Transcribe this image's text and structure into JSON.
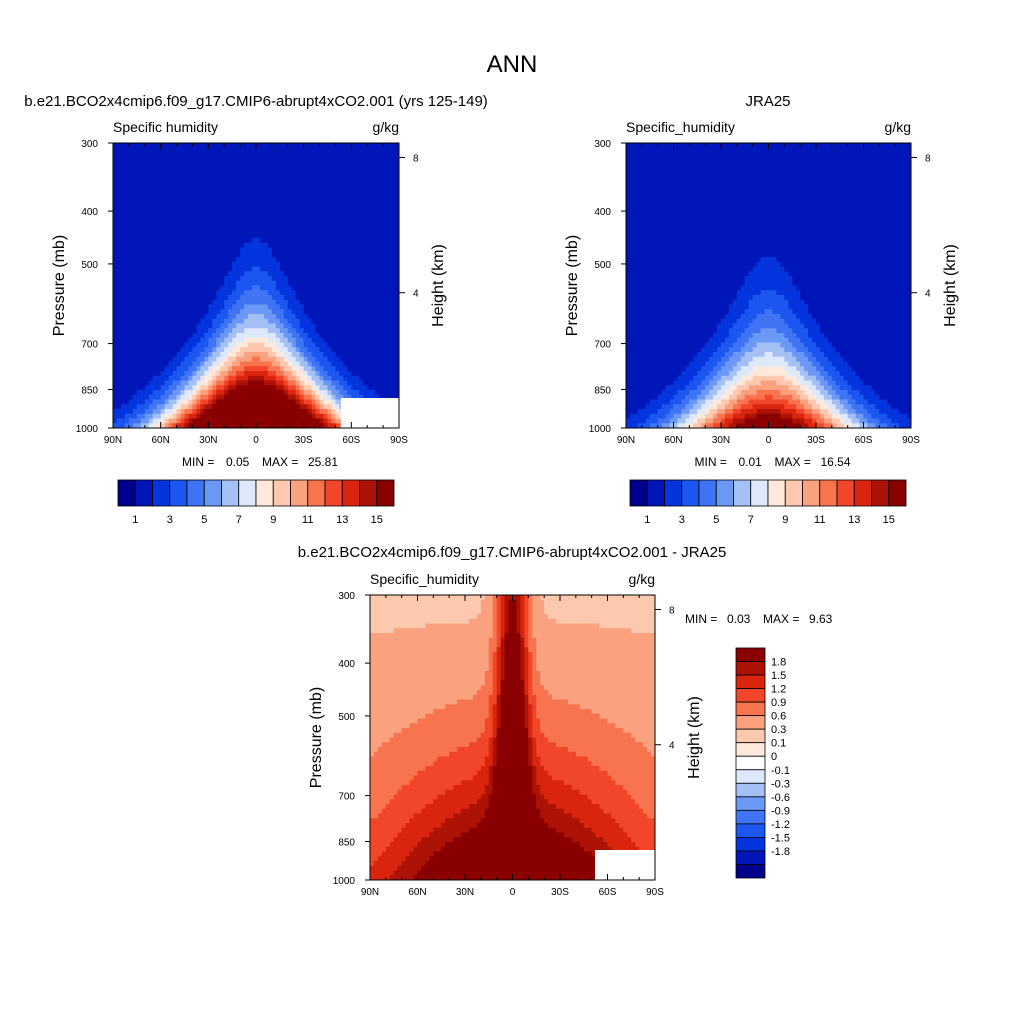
{
  "figure_title": "ANN",
  "chart_data": [
    {
      "type": "heatmap",
      "title": "b.e21.BCO2x4cmip6.f09_g17.CMIP6-abrupt4xCO2.001 (yrs 125-149)",
      "left_label": "Specific humidity",
      "right_label": "g/kg",
      "xlabel": "",
      "ylabel": "Pressure (mb)",
      "y2label": "Height (km)",
      "xticks": [
        "90N",
        "60N",
        "30N",
        "0",
        "30S",
        "60S",
        "90S"
      ],
      "yticks": [
        "300",
        "400",
        "500",
        "700",
        "850",
        "1000"
      ],
      "y2ticks": [
        "8",
        "4"
      ],
      "xlim": [
        90,
        -90
      ],
      "ylim": [
        1000,
        300
      ],
      "stats": {
        "min_label": "MIN =",
        "min": "0.05",
        "max_label": "MAX =",
        "max": "25.81"
      },
      "field": {
        "peak": 25.81,
        "peak_lat": 0,
        "min": 0.05
      },
      "colorbar": {
        "orientation": "horizontal",
        "colors": [
          "#00008a",
          "#0016b8",
          "#0434dd",
          "#1c56f0",
          "#3f74f4",
          "#6b98f5",
          "#a4c0f5",
          "#dde8fb",
          "#ffe9dd",
          "#fcc9af",
          "#faa27f",
          "#f8744f",
          "#f2462a",
          "#da250e",
          "#ac1206",
          "#8a0000"
        ],
        "labels": [
          "1",
          "3",
          "5",
          "7",
          "9",
          "11",
          "13",
          "15"
        ]
      }
    },
    {
      "type": "heatmap",
      "title": "JRA25",
      "left_label": "Specific_humidity",
      "right_label": "g/kg",
      "xlabel": "",
      "ylabel": "Pressure (mb)",
      "y2label": "Height (km)",
      "xticks": [
        "90N",
        "60N",
        "30N",
        "0",
        "30S",
        "60S",
        "90S"
      ],
      "yticks": [
        "300",
        "400",
        "500",
        "700",
        "850",
        "1000"
      ],
      "y2ticks": [
        "8",
        "4"
      ],
      "xlim": [
        90,
        -90
      ],
      "ylim": [
        1000,
        300
      ],
      "stats": {
        "min_label": "MIN =",
        "min": "0.01",
        "max_label": "MAX =",
        "max": "16.54"
      },
      "field": {
        "peak": 16.54,
        "peak_lat": 0,
        "min": 0.01
      },
      "colorbar": {
        "orientation": "horizontal",
        "colors": [
          "#00008a",
          "#0016b8",
          "#0434dd",
          "#1c56f0",
          "#3f74f4",
          "#6b98f5",
          "#a4c0f5",
          "#dde8fb",
          "#ffe9dd",
          "#fcc9af",
          "#faa27f",
          "#f8744f",
          "#f2462a",
          "#da250e",
          "#ac1206",
          "#8a0000"
        ],
        "labels": [
          "1",
          "3",
          "5",
          "7",
          "9",
          "11",
          "13",
          "15"
        ]
      }
    },
    {
      "type": "heatmap",
      "title": "b.e21.BCO2x4cmip6.f09_g17.CMIP6-abrupt4xCO2.001 - JRA25",
      "left_label": "Specific_humidity",
      "right_label": "g/kg",
      "xlabel": "",
      "ylabel": "Pressure (mb)",
      "y2label": "Height (km)",
      "xticks": [
        "90N",
        "60N",
        "30N",
        "0",
        "30S",
        "60S",
        "90S"
      ],
      "yticks": [
        "300",
        "400",
        "500",
        "700",
        "850",
        "1000"
      ],
      "y2ticks": [
        "8",
        "4"
      ],
      "xlim": [
        90,
        -90
      ],
      "ylim": [
        1000,
        300
      ],
      "stats": {
        "min_label": "MIN =",
        "min": "0.03",
        "max_label": "MAX =",
        "max": "9.63"
      },
      "field": {
        "peak": 9.63,
        "peak_lat": 0,
        "min": 0.03
      },
      "colorbar": {
        "orientation": "vertical",
        "colors": [
          "#8a0000",
          "#ac1206",
          "#da250e",
          "#f2462a",
          "#f8744f",
          "#faa27f",
          "#fcc9af",
          "#ffe9dd",
          "#ffffff",
          "#dde8fb",
          "#a4c0f5",
          "#6b98f5",
          "#3f74f4",
          "#1c56f0",
          "#0434dd",
          "#0016b8",
          "#00008a"
        ],
        "labels": [
          "1.8",
          "1.5",
          "1.2",
          "0.9",
          "0.6",
          "0.3",
          "0.1",
          "0",
          "-0.1",
          "-0.3",
          "-0.6",
          "-0.9",
          "-1.2",
          "-1.5",
          "-1.8"
        ]
      }
    }
  ]
}
